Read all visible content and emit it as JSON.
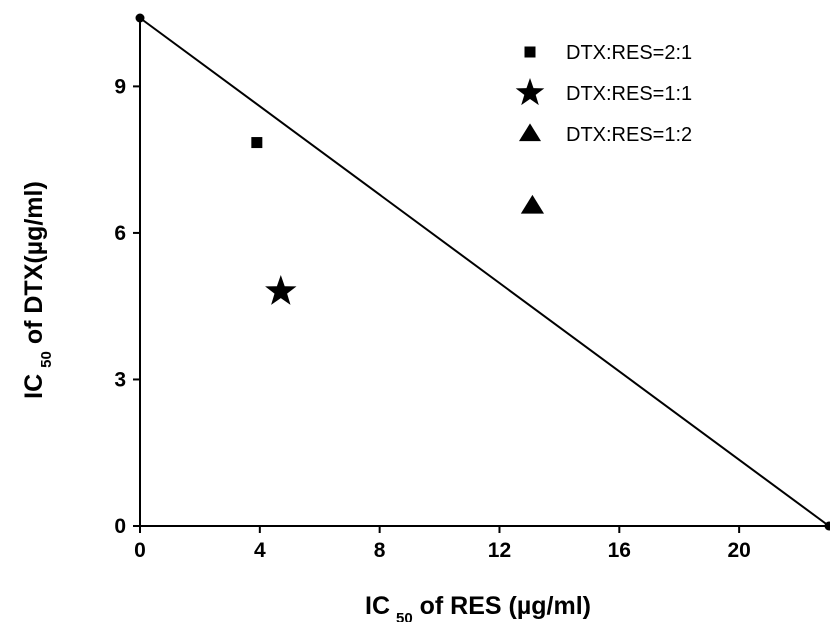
{
  "chart_data": {
    "type": "scatter",
    "xlabel": {
      "prefix": "IC",
      "sub": "50",
      "suffix": " of RES (µg/ml)"
    },
    "ylabel": {
      "prefix": "IC",
      "sub": "50",
      "suffix": " of DTX(µg/ml)"
    },
    "xlim": [
      0,
      23
    ],
    "ylim": [
      0,
      10.4
    ],
    "xticks": [
      0,
      4,
      8,
      12,
      16,
      20
    ],
    "xtick_labels": [
      "0",
      "4",
      "8",
      "12",
      "16",
      "20"
    ],
    "yticks": [
      0,
      3,
      6,
      9
    ],
    "ytick_labels": [
      "0",
      "3",
      "6",
      "9"
    ],
    "grid": false,
    "legend_position": "top-right",
    "isobole": {
      "x": [
        0,
        23
      ],
      "y": [
        10.4,
        0
      ]
    },
    "series": [
      {
        "name": "DTX:RES=2:1",
        "marker": "square",
        "x": [
          3.9
        ],
        "y": [
          7.85
        ]
      },
      {
        "name": "DTX:RES=1:1",
        "marker": "star",
        "x": [
          4.7
        ],
        "y": [
          4.8
        ]
      },
      {
        "name": "DTX:RES=1:2",
        "marker": "triangle",
        "x": [
          13.1
        ],
        "y": [
          6.55
        ]
      }
    ]
  }
}
